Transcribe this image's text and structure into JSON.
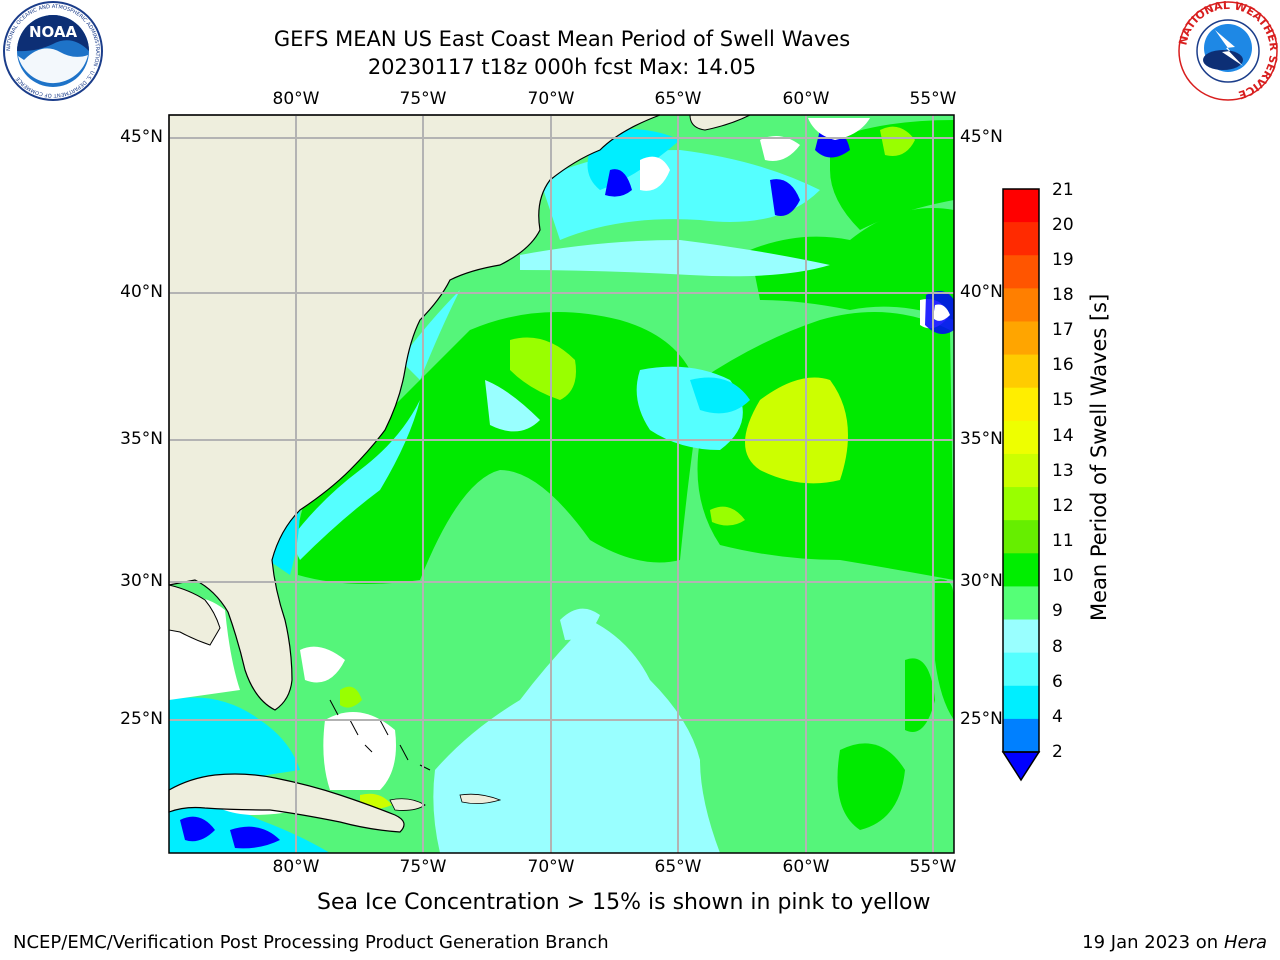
{
  "title": {
    "line1": "GEFS MEAN US East Coast Mean Period of Swell Waves",
    "line2": "20230117 t18z 000h fcst   Max: 14.05"
  },
  "logos": {
    "left_text": "NOAA",
    "left_ring_text": "NATIONAL OCEANIC AND ATMOSPHERIC ADMINISTRATION · U.S. DEPARTMENT OF COMMERCE",
    "right_ring_text": "NATIONAL WEATHER SERVICE"
  },
  "map": {
    "lon_labels": [
      "80°W",
      "75°W",
      "70°W",
      "65°W",
      "60°W",
      "55°W"
    ],
    "lat_labels": [
      "45°N",
      "40°N",
      "35°N",
      "30°N",
      "25°N"
    ],
    "land_color": "#eeeedd",
    "grid_color": "#b3b3b3"
  },
  "colorbar": {
    "label": "Mean Period of Swell Waves [s]",
    "ticks": [
      "21",
      "20",
      "19",
      "18",
      "17",
      "16",
      "15",
      "14",
      "13",
      "12",
      "11",
      "10",
      "9",
      "8",
      "6",
      "4",
      "2"
    ],
    "colors": [
      "#ff0000",
      "#ff2a00",
      "#ff5500",
      "#ff7f00",
      "#ffa500",
      "#ffcc00",
      "#ffee00",
      "#eeff00",
      "#ccff00",
      "#99ff00",
      "#66ee00",
      "#00ee00",
      "#55ff77",
      "#99ffff",
      "#55ffff",
      "#00eeff",
      "#0080ff",
      "#0000ff"
    ]
  },
  "footnote": "Sea Ice Concentration > 15% is shown in pink to yellow",
  "credit_left": "NCEP/EMC/Verification Post Processing Product Generation Branch",
  "credit_right_date": "19 Jan 2023 on ",
  "credit_right_host": "Hera"
}
